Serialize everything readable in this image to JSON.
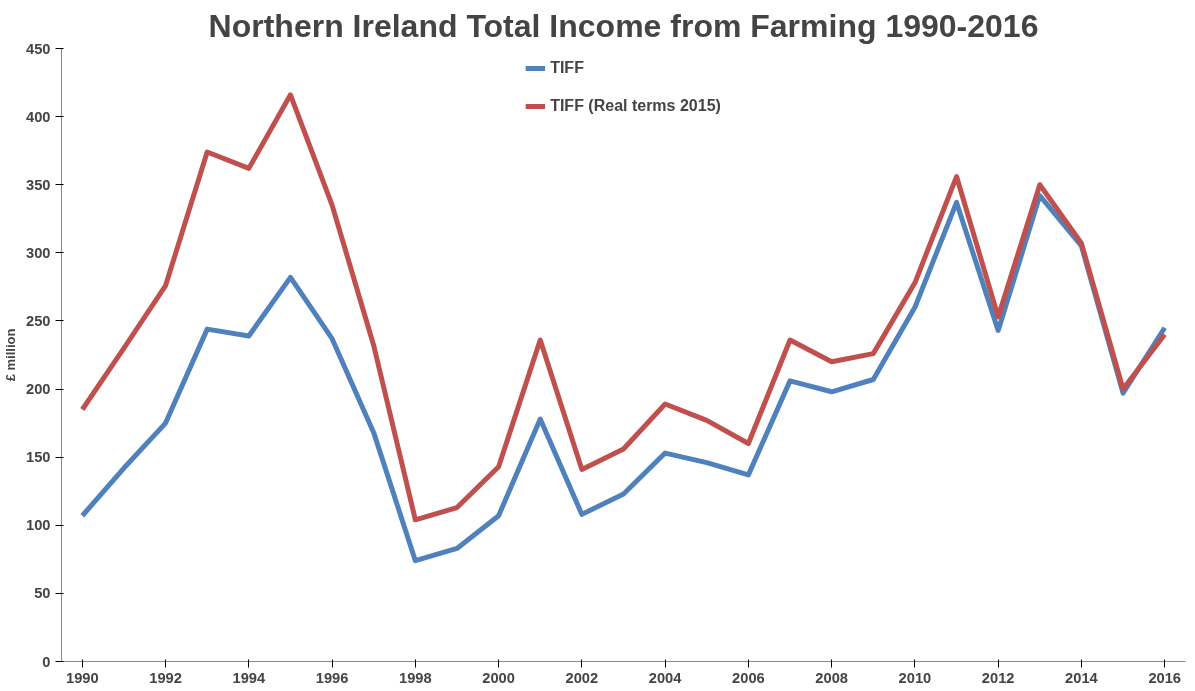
{
  "chart_data": {
    "type": "line",
    "title": "Northern Ireland Total Income from Farming 1990-2016",
    "ylabel": "£ million",
    "x": [
      1990,
      1991,
      1992,
      1993,
      1994,
      1995,
      1996,
      1997,
      1998,
      1999,
      2000,
      2001,
      2002,
      2003,
      2004,
      2005,
      2006,
      2007,
      2008,
      2009,
      2010,
      2011,
      2012,
      2013,
      2014,
      2015,
      2016
    ],
    "series": [
      {
        "name": "TIFF",
        "color": "#4f81bd",
        "values": [
          107,
          142,
          175,
          244,
          239,
          282,
          237,
          168,
          74,
          83,
          107,
          178,
          108,
          123,
          153,
          146,
          137,
          206,
          198,
          207,
          260,
          337,
          243,
          342,
          305,
          197,
          245
        ]
      },
      {
        "name": "TIFF (Real terms 2015)",
        "color": "#c0504d",
        "values": [
          185,
          230,
          276,
          374,
          362,
          416,
          335,
          232,
          104,
          113,
          143,
          236,
          141,
          156,
          189,
          177,
          160,
          236,
          220,
          226,
          278,
          356,
          253,
          350,
          307,
          200,
          240
        ]
      }
    ],
    "xlim": [
      1989.5,
      2016.5
    ],
    "xticks": [
      1990,
      1992,
      1994,
      1996,
      1998,
      2000,
      2002,
      2004,
      2006,
      2008,
      2010,
      2012,
      2014,
      2016
    ],
    "ylim": [
      0,
      450
    ],
    "yticks": [
      0,
      50,
      100,
      150,
      200,
      250,
      300,
      350,
      400,
      450
    ],
    "grid": false,
    "legend": "top",
    "marker": "none",
    "line_style": "solid"
  }
}
